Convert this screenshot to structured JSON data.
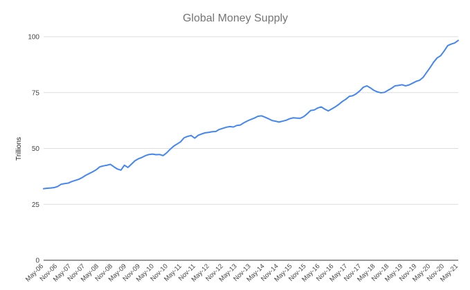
{
  "chart_data": {
    "type": "line",
    "title": "Global Money Supply",
    "xlabel": "",
    "ylabel": "Trillions",
    "ylim": [
      0,
      100
    ],
    "yticks": [
      0,
      25,
      50,
      75,
      100
    ],
    "grid": true,
    "legend": "none",
    "x_tick_labels": [
      "May-06",
      "Nov-06",
      "May-07",
      "Nov-07",
      "May-08",
      "Nov-08",
      "May-09",
      "Nov-09",
      "May-10",
      "Nov-10",
      "May-11",
      "Nov-11",
      "May-12",
      "Nov-12",
      "May-13",
      "Nov-13",
      "May-14",
      "Nov-14",
      "May-15",
      "Nov-15",
      "May-16",
      "Nov-16",
      "May-17",
      "Nov-17",
      "May-18",
      "Nov-18",
      "May-19",
      "Nov-19",
      "May-20",
      "Nov-20",
      "May-21"
    ],
    "series": [
      {
        "color": "#4285f4",
        "values": [
          32,
          32.2,
          32.3,
          32.5,
          33,
          34,
          34.3,
          34.5,
          35.2,
          35.7,
          36.2,
          37,
          38,
          38.8,
          39.6,
          40.5,
          41.8,
          42.2,
          42.5,
          42.9,
          41.8,
          40.8,
          40.3,
          42.5,
          41.5,
          43,
          44.5,
          45.4,
          46,
          46.8,
          47.3,
          47.5,
          47.2,
          47.3,
          46.8,
          48,
          49.6,
          51,
          52,
          53,
          54.8,
          55.4,
          55.8,
          54.6,
          55.9,
          56.5,
          57,
          57.2,
          57.5,
          57.6,
          58.5,
          59,
          59.5,
          59.8,
          59.6,
          60.3,
          60.5,
          61.5,
          62.3,
          63,
          63.6,
          64.4,
          64.6,
          64,
          63.3,
          62.5,
          62.2,
          61.8,
          62.2,
          62.6,
          63.3,
          63.7,
          63.6,
          63.5,
          64.2,
          65.5,
          67,
          67.2,
          68.1,
          68.6,
          67.6,
          66.8,
          67.7,
          68.6,
          69.7,
          71,
          72,
          73.3,
          73.6,
          74.5,
          75.8,
          77.4,
          78,
          77.1,
          76,
          75.3,
          74.9,
          75.1,
          76,
          76.9,
          78,
          78.2,
          78.5,
          78,
          78.4,
          79.2,
          80,
          80.5,
          81.8,
          84,
          86.2,
          88.6,
          90.5,
          91.5,
          93.6,
          96,
          96.7,
          97.2,
          98.3
        ]
      }
    ]
  }
}
